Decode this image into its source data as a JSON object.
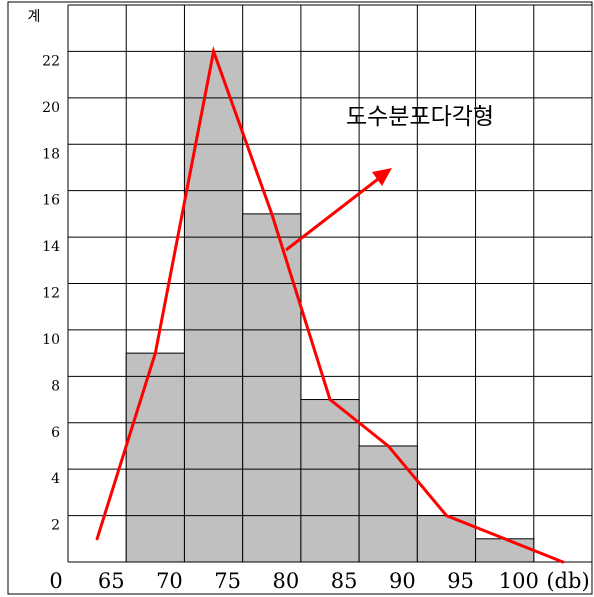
{
  "chart_data": {
    "type": "bar",
    "bars": [
      {
        "x_start": 65,
        "x_end": 70,
        "value": 9
      },
      {
        "x_start": 70,
        "x_end": 75,
        "value": 22
      },
      {
        "x_start": 75,
        "x_end": 80,
        "value": 15
      },
      {
        "x_start": 80,
        "x_end": 85,
        "value": 7
      },
      {
        "x_start": 85,
        "x_end": 90,
        "value": 5
      },
      {
        "x_start": 90,
        "x_end": 95,
        "value": 2
      },
      {
        "x_start": 95,
        "x_end": 100,
        "value": 1
      }
    ],
    "polygon_line": {
      "color": "#ff0000",
      "points": [
        {
          "x": 62.5,
          "y": 1
        },
        {
          "x": 67.5,
          "y": 9
        },
        {
          "x": 72.5,
          "y": 22
        },
        {
          "x": 77.5,
          "y": 15
        },
        {
          "x": 82.5,
          "y": 7
        },
        {
          "x": 87.5,
          "y": 5
        },
        {
          "x": 92.5,
          "y": 2
        },
        {
          "x": 97.5,
          "y": 1
        },
        {
          "x": 102.5,
          "y": 0
        }
      ]
    },
    "x_tick_labels": [
      "65",
      "70",
      "75",
      "80",
      "85",
      "90",
      "95",
      "100"
    ],
    "x_origin_label": "0",
    "x_unit_label": "(db)",
    "y_ticks": [
      2,
      4,
      6,
      8,
      10,
      12,
      14,
      16,
      18,
      20,
      22
    ],
    "y_top_label": "계",
    "ylim": [
      0,
      24
    ],
    "xlim": [
      60,
      105
    ],
    "grid": true,
    "bar_color": "#c0c0c0",
    "annotation": "도수분포다각형",
    "annotation_arrow_color": "#ff0000"
  }
}
